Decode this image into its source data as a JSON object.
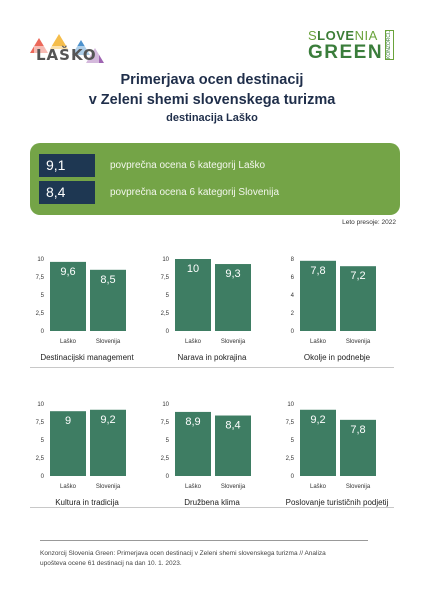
{
  "header": {
    "logo_left": "LAŠKO",
    "logo_right_line1_a": "S",
    "logo_right_line1_b": "LOVE",
    "logo_right_line1_c": "NIA",
    "logo_right_line2": "GREEN",
    "logo_right_tag": "KONZORCIJ",
    "title_line1": "Primerjava ocen destinacij",
    "title_line2": "v Zeleni shemi slovenskega turizma",
    "subtitle": "destinacija Laško"
  },
  "summary": {
    "rows": [
      {
        "value": "9,1",
        "label": "povprečna ocena 6 kategorij Laško"
      },
      {
        "value": "8,4",
        "label": "povprečna ocena 6 kategorij Slovenija"
      }
    ],
    "year_note": "Leto presoje: 2022"
  },
  "colors": {
    "bar": "#3e7d63",
    "green_box": "#74a447",
    "navy": "#1e3752"
  },
  "chart_data": [
    {
      "type": "bar",
      "title": "Destinacijski management",
      "categories": [
        "Laško",
        "Slovenija"
      ],
      "values": [
        9.6,
        8.5
      ],
      "labels": [
        "9,6",
        "8,5"
      ],
      "ylim": [
        0,
        10
      ],
      "yticks": [
        "0",
        "2,5",
        "5",
        "7,5",
        "10"
      ]
    },
    {
      "type": "bar",
      "title": "Narava in pokrajina",
      "categories": [
        "Laško",
        "Slovenija"
      ],
      "values": [
        10,
        9.3
      ],
      "labels": [
        "10",
        "9,3"
      ],
      "ylim": [
        0,
        10
      ],
      "yticks": [
        "0",
        "2,5",
        "5",
        "7,5",
        "10"
      ]
    },
    {
      "type": "bar",
      "title": "Okolje in podnebje",
      "categories": [
        "Laško",
        "Slovenija"
      ],
      "values": [
        7.8,
        7.2
      ],
      "labels": [
        "7,8",
        "7,2"
      ],
      "ylim": [
        0,
        8
      ],
      "yticks": [
        "0",
        "2",
        "4",
        "6",
        "8"
      ]
    },
    {
      "type": "bar",
      "title": "Kultura in tradicija",
      "categories": [
        "Laško",
        "Slovenija"
      ],
      "values": [
        9,
        9.2
      ],
      "labels": [
        "9",
        "9,2"
      ],
      "ylim": [
        0,
        10
      ],
      "yticks": [
        "0",
        "2,5",
        "5",
        "7,5",
        "10"
      ]
    },
    {
      "type": "bar",
      "title": "Družbena klima",
      "categories": [
        "Laško",
        "Slovenija"
      ],
      "values": [
        8.9,
        8.4
      ],
      "labels": [
        "8,9",
        "8,4"
      ],
      "ylim": [
        0,
        10
      ],
      "yticks": [
        "0",
        "2,5",
        "5",
        "7,5",
        "10"
      ]
    },
    {
      "type": "bar",
      "title": "Poslovanje turističnih podjetij",
      "categories": [
        "Laško",
        "Slovenija"
      ],
      "values": [
        9.2,
        7.8
      ],
      "labels": [
        "9,2",
        "7,8"
      ],
      "ylim": [
        0,
        10
      ],
      "yticks": [
        "0",
        "2,5",
        "5",
        "7,5",
        "10"
      ]
    }
  ],
  "footer": {
    "line1": "Konzorcij Slovenia Green: Primerjava ocen destinacij v Zeleni shemi slovenskega turizma // Analiza",
    "line2": "upošteva ocene 61 destinacij na dan 10. 1. 2023."
  }
}
